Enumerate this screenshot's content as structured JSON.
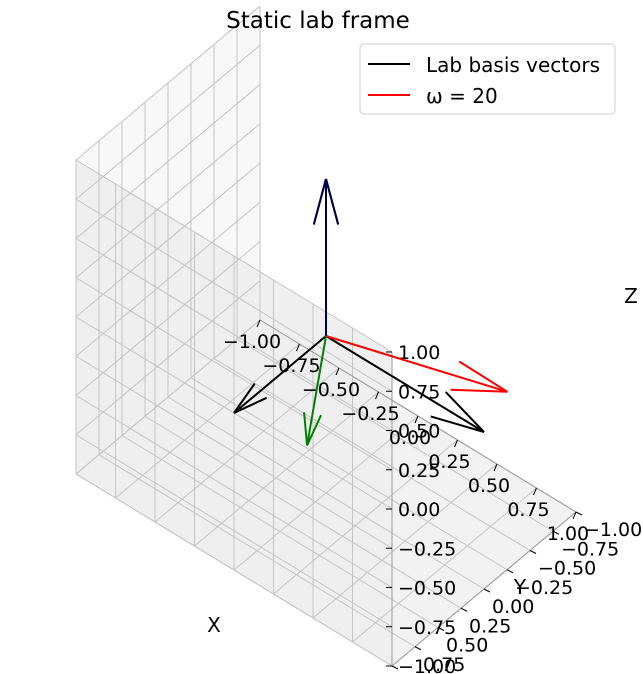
{
  "chart_data": {
    "type": "3d-quiver",
    "title": "Static lab frame",
    "xlabel": "X",
    "ylabel": "Y",
    "zlabel": "Z",
    "xlim": [
      -1.0,
      1.0
    ],
    "ylim": [
      -1.0,
      1.0
    ],
    "zlim": [
      -1.0,
      1.0
    ],
    "xticks": [
      "−1.00",
      "−0.75",
      "−0.50",
      "−0.25",
      "0.00",
      "0.25",
      "0.50",
      "0.75",
      "1.00"
    ],
    "yticks": [
      "−1.00",
      "−0.75",
      "−0.50",
      "−0.25",
      "0.00",
      "0.25",
      "0.50",
      "0.75",
      "1.00"
    ],
    "zticks": [
      "−1.00",
      "−0.75",
      "−0.50",
      "−0.25",
      "0.00",
      "0.25",
      "0.50",
      "0.75",
      "1.00"
    ],
    "grid": true,
    "legend_position": "top-right",
    "legend": [
      {
        "label": "Lab basis vectors",
        "color": "#000000"
      },
      {
        "label": "ω = 20",
        "color": "#ff0000"
      }
    ],
    "series": [
      {
        "name": "Lab basis vectors",
        "color": "#000000",
        "vectors": [
          {
            "origin": [
              0,
              0,
              0
            ],
            "direction": [
              1,
              0,
              0
            ]
          },
          {
            "origin": [
              0,
              0,
              0
            ],
            "direction": [
              0,
              1,
              0
            ]
          },
          {
            "origin": [
              0,
              0,
              0
            ],
            "direction": [
              0,
              0,
              1
            ]
          }
        ]
      },
      {
        "name": "ω = 20",
        "color": "#ff0000",
        "vectors": [
          {
            "origin": [
              0,
              0,
              0
            ],
            "direction": [
              0.91,
              -0.41,
              0.0
            ]
          }
        ]
      },
      {
        "color": "#008000",
        "vectors": [
          {
            "origin": [
              0,
              0,
              0
            ],
            "direction": [
              0.41,
              0.91,
              0.0
            ]
          }
        ]
      },
      {
        "color": "#00004a",
        "vectors": [
          {
            "origin": [
              0,
              0,
              0
            ],
            "direction": [
              0,
              0,
              1
            ]
          }
        ]
      }
    ]
  }
}
